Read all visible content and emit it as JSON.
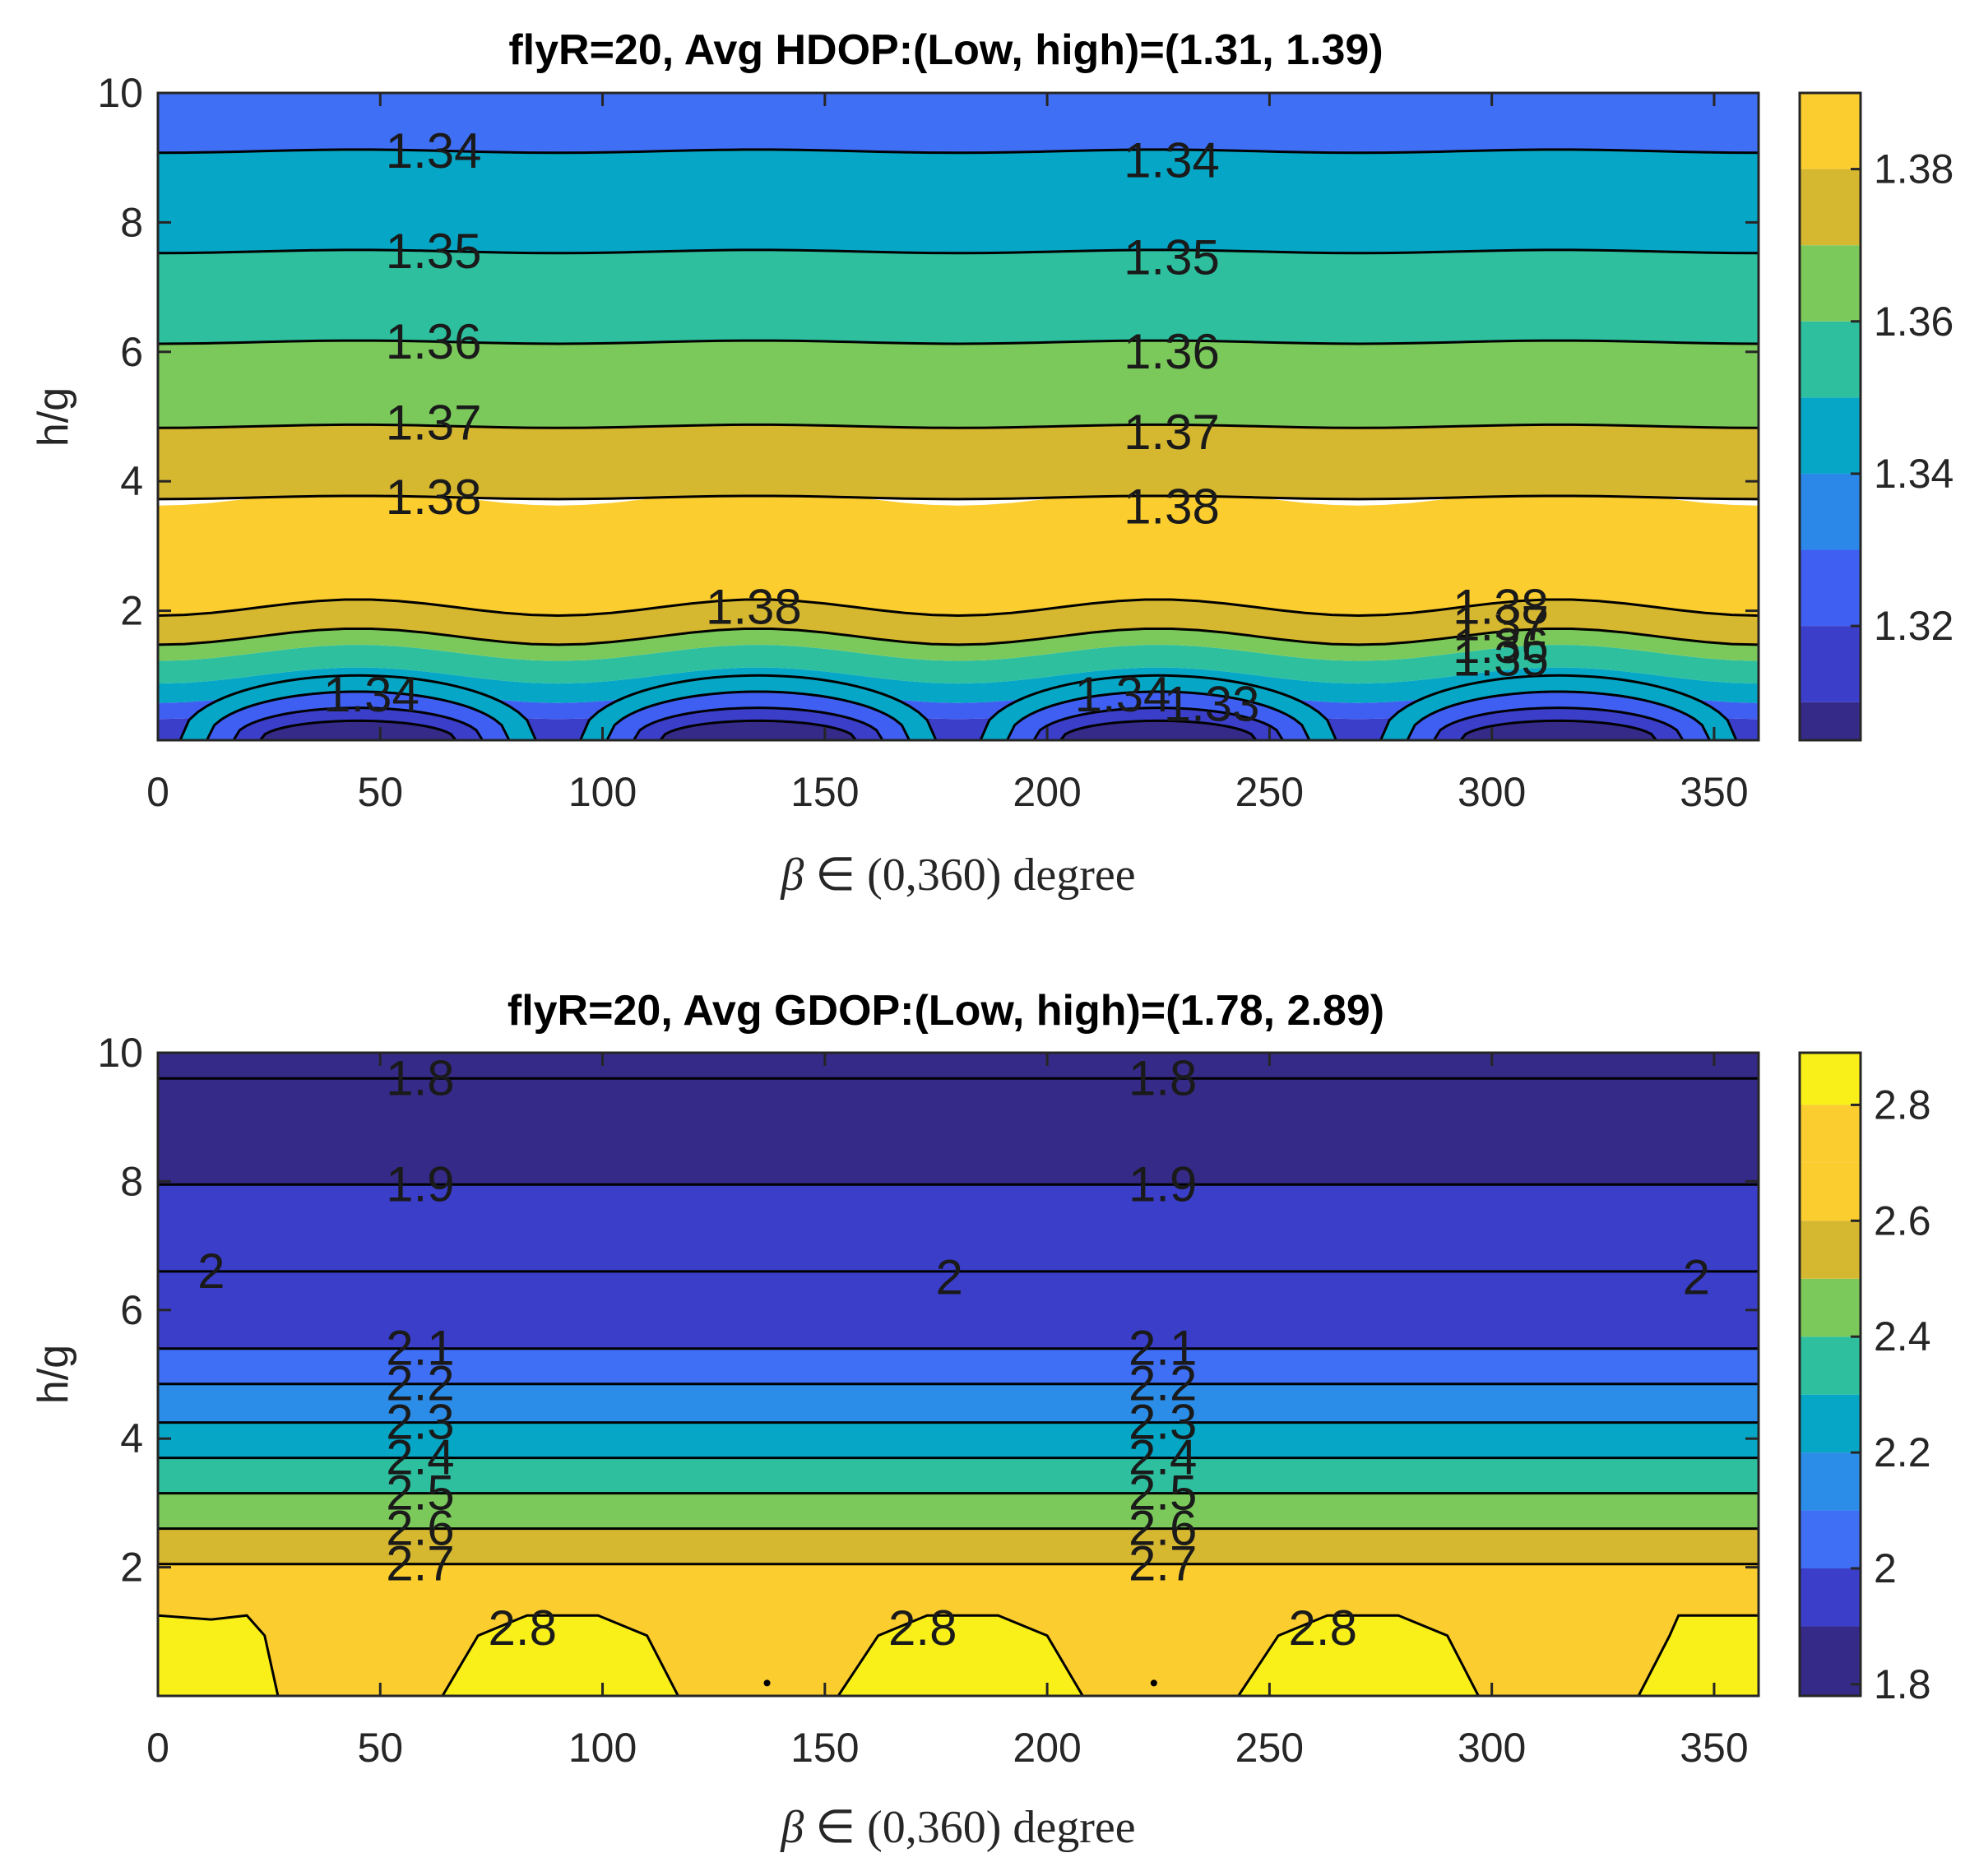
{
  "chart_data": [
    {
      "type": "contour",
      "title": "flyR=20, Avg HDOP:(Low, high)=(1.31, 1.39)",
      "xlabel": {
        "symbol": "β",
        "rest": " ∈ (0,360) degree"
      },
      "ylabel": "h/g",
      "xlim": [
        0,
        360
      ],
      "ylim": [
        0,
        10
      ],
      "xticks": [
        "0",
        "50",
        "100",
        "150",
        "200",
        "250",
        "300",
        "350"
      ],
      "yticks": [
        "2",
        "4",
        "6",
        "8",
        "10"
      ],
      "colorbar": {
        "range": [
          1.305,
          1.39
        ],
        "ticks": [
          "1.32",
          "1.34",
          "1.36",
          "1.38"
        ],
        "tick_values": [
          1.32,
          1.34,
          1.36,
          1.38
        ],
        "levels": [
          1.305,
          1.31,
          1.32,
          1.33,
          1.34,
          1.35,
          1.36,
          1.37,
          1.38,
          1.39
        ],
        "colors": [
          "#352a87",
          "#3a3ec9",
          "#3f5ff2",
          "#2b87e8",
          "#06a7c6",
          "#2ebf9f",
          "#7cc95b",
          "#d6b730",
          "#fbcd2f"
        ]
      },
      "bands": [
        {
          "from": 0,
          "to": 1,
          "y_low": 0.12,
          "y_high": 0.45,
          "color": "#3a3ec9"
        },
        {
          "from": 1,
          "to": 1.2,
          "y_low": 0.45,
          "y_high": 0.7,
          "color": "#3f5ff2"
        },
        {
          "from": 1.2,
          "to": 2,
          "y_low": 0.7,
          "y_high": 1.0,
          "color": "#06a7c6"
        },
        {
          "from": 2,
          "to": 3.5,
          "y_low": 1.0,
          "y_high": 1.35,
          "color": "#2ebf9f"
        },
        {
          "from": 3.5,
          "to": 6,
          "y_low": 1.35,
          "y_high": 1.6,
          "color": "#7cc95b"
        },
        {
          "from": 6,
          "to": 7.5,
          "y_low": 1.6,
          "y_high": 2.05,
          "color": "#d6b730"
        },
        {
          "from": 7.5,
          "to": 9.7,
          "y_low": 2.05,
          "y_high": 3.75,
          "color": "#fbcd2f"
        },
        {
          "from": 9.7,
          "to": 10,
          "y_low": 3.75,
          "y_high": 4.85,
          "color": "#d6b730"
        },
        {
          "from": 10,
          "to": 10,
          "y_low": 4.85,
          "y_high": 6.15,
          "color": "#7cc95b"
        },
        {
          "from": 10,
          "to": 10,
          "y_low": 6.15,
          "y_high": 7.55,
          "color": "#2ebf9f"
        },
        {
          "from": 10,
          "to": 10,
          "y_low": 7.55,
          "y_high": 9.1,
          "color": "#06a7c6"
        },
        {
          "from": 10,
          "to": 10,
          "y_low": 9.1,
          "y_high": 10,
          "color": "#3f6ff5"
        }
      ],
      "contour_lines": [
        9.1,
        7.55,
        6.15,
        4.85,
        3.75,
        2.05,
        1.6
      ],
      "domes": {
        "centers": [
          45,
          135,
          225,
          315
        ],
        "heights": [
          1.0,
          0.75,
          0.5,
          0.3
        ],
        "colors": [
          "#06a7c6",
          "#3f5ff2",
          "#3a3ec9",
          "#352a87"
        ]
      },
      "contour_labels": [
        {
          "text": "1.34",
          "x": 62,
          "y": 9.1
        },
        {
          "text": "1.34",
          "x": 228,
          "y": 8.95
        },
        {
          "text": "1.35",
          "x": 62,
          "y": 7.55
        },
        {
          "text": "1.35",
          "x": 228,
          "y": 7.45
        },
        {
          "text": "1.36",
          "x": 62,
          "y": 6.15
        },
        {
          "text": "1.36",
          "x": 228,
          "y": 6.0
        },
        {
          "text": "1.37",
          "x": 62,
          "y": 4.9
        },
        {
          "text": "1.37",
          "x": 228,
          "y": 4.75
        },
        {
          "text": "1.38",
          "x": 62,
          "y": 3.75
        },
        {
          "text": "1.38",
          "x": 228,
          "y": 3.6
        },
        {
          "text": "1.38",
          "x": 134,
          "y": 2.05
        },
        {
          "text": "1.38",
          "x": 302,
          "y": 2.05
        },
        {
          "text": "1.37",
          "x": 302,
          "y": 1.8
        },
        {
          "text": "1.36",
          "x": 302,
          "y": 1.45
        },
        {
          "text": "1.35",
          "x": 302,
          "y": 1.25
        },
        {
          "text": "1.34",
          "x": 217,
          "y": 0.7
        },
        {
          "text": "1.33",
          "x": 237,
          "y": 0.55
        },
        {
          "text": "1.34",
          "x": 48,
          "y": 0.7
        }
      ]
    },
    {
      "type": "contour",
      "title": "flyR=20, Avg GDOP:(Low, high)=(1.78, 2.89)",
      "xlabel": {
        "symbol": "β",
        "rest": " ∈ (0,360) degree"
      },
      "ylabel": "h/g",
      "xlim": [
        0,
        360
      ],
      "ylim": [
        0,
        10
      ],
      "xticks": [
        "0",
        "50",
        "100",
        "150",
        "200",
        "250",
        "300",
        "350"
      ],
      "yticks": [
        "2",
        "4",
        "6",
        "8",
        "10"
      ],
      "colorbar": {
        "range": [
          1.78,
          2.89
        ],
        "ticks": [
          "1.8",
          "2",
          "2.2",
          "2.4",
          "2.6",
          "2.8"
        ],
        "tick_values": [
          1.8,
          2.0,
          2.2,
          2.4,
          2.6,
          2.8
        ],
        "levels": [
          1.78,
          1.9,
          2.0,
          2.1,
          2.2,
          2.3,
          2.4,
          2.5,
          2.6,
          2.7,
          2.8,
          2.89
        ],
        "colors": [
          "#352a87",
          "#3a3ec9",
          "#3f6ff5",
          "#2b8de8",
          "#06a7c6",
          "#2ebf9f",
          "#7cc95b",
          "#d6b730",
          "#fbcd2f",
          "#fbcd2f",
          "#f9f01a"
        ]
      },
      "bands": [
        {
          "from": 10,
          "to": 10,
          "y_low": 9.6,
          "y_high": 10,
          "color": "#352a87"
        },
        {
          "from": 10,
          "to": 10,
          "y_low": 7.95,
          "y_high": 9.6,
          "color": "#352a87"
        },
        {
          "from": 10,
          "to": 10,
          "y_low": 6.6,
          "y_high": 7.95,
          "color": "#3a3ec9"
        },
        {
          "from": 10,
          "to": 10,
          "y_low": 5.4,
          "y_high": 6.6,
          "color": "#3a3ec9"
        },
        {
          "from": 10,
          "to": 10,
          "y_low": 4.85,
          "y_high": 5.4,
          "color": "#3f6ff5"
        },
        {
          "from": 10,
          "to": 10,
          "y_low": 4.25,
          "y_high": 4.85,
          "color": "#2b8de8"
        },
        {
          "from": 10,
          "to": 10,
          "y_low": 3.7,
          "y_high": 4.25,
          "color": "#06a7c6"
        },
        {
          "from": 10,
          "to": 10,
          "y_low": 3.15,
          "y_high": 3.7,
          "color": "#2ebf9f"
        },
        {
          "from": 10,
          "to": 10,
          "y_low": 2.6,
          "y_high": 3.15,
          "color": "#7cc95b"
        },
        {
          "from": 10,
          "to": 10,
          "y_low": 2.05,
          "y_high": 2.6,
          "color": "#d6b730"
        },
        {
          "from": 10,
          "to": 10,
          "y_low": 0,
          "y_high": 2.05,
          "color": "#fbcd2f"
        }
      ],
      "contour_lines": [
        9.6,
        7.95,
        6.6,
        5.4,
        4.85,
        4.25,
        3.7,
        3.15,
        2.6,
        2.05
      ],
      "caps": [
        {
          "x": [
            0,
            0,
            24,
            27
          ],
          "peak": 1.25,
          "shape": "left"
        },
        {
          "x": [
            64,
            72,
            110,
            117
          ],
          "peak": 1.25
        },
        {
          "x": [
            153,
            162,
            200,
            208
          ],
          "peak": 1.25
        },
        {
          "x": [
            243,
            252,
            290,
            297
          ],
          "peak": 1.25
        },
        {
          "x": [
            333,
            340,
            360,
            360
          ],
          "peak": 1.25,
          "shape": "right"
        }
      ],
      "cap_color": "#f9f01a",
      "dots": [
        {
          "x": 137,
          "y": 0.2
        },
        {
          "x": 224,
          "y": 0.2
        }
      ],
      "contour_labels": [
        {
          "text": "1.8",
          "x": 59,
          "y": 9.6
        },
        {
          "text": "1.8",
          "x": 226,
          "y": 9.6
        },
        {
          "text": "1.9",
          "x": 59,
          "y": 7.95
        },
        {
          "text": "1.9",
          "x": 226,
          "y": 7.95
        },
        {
          "text": "2",
          "x": 12,
          "y": 6.6
        },
        {
          "text": "2",
          "x": 178,
          "y": 6.5
        },
        {
          "text": "2",
          "x": 346,
          "y": 6.5
        },
        {
          "text": "2.1",
          "x": 59,
          "y": 5.4
        },
        {
          "text": "2.1",
          "x": 226,
          "y": 5.4
        },
        {
          "text": "2.2",
          "x": 59,
          "y": 4.85
        },
        {
          "text": "2.2",
          "x": 226,
          "y": 4.85
        },
        {
          "text": "2.3",
          "x": 59,
          "y": 4.25
        },
        {
          "text": "2.3",
          "x": 226,
          "y": 4.25
        },
        {
          "text": "2.4",
          "x": 59,
          "y": 3.7
        },
        {
          "text": "2.4",
          "x": 226,
          "y": 3.7
        },
        {
          "text": "2.5",
          "x": 59,
          "y": 3.15
        },
        {
          "text": "2.5",
          "x": 226,
          "y": 3.15
        },
        {
          "text": "2.6",
          "x": 59,
          "y": 2.6
        },
        {
          "text": "2.6",
          "x": 226,
          "y": 2.6
        },
        {
          "text": "2.7",
          "x": 59,
          "y": 2.05
        },
        {
          "text": "2.7",
          "x": 226,
          "y": 2.05
        },
        {
          "text": "2.8",
          "x": 82,
          "y": 1.05
        },
        {
          "text": "2.8",
          "x": 172,
          "y": 1.05
        },
        {
          "text": "2.8",
          "x": 262,
          "y": 1.05
        }
      ]
    }
  ]
}
